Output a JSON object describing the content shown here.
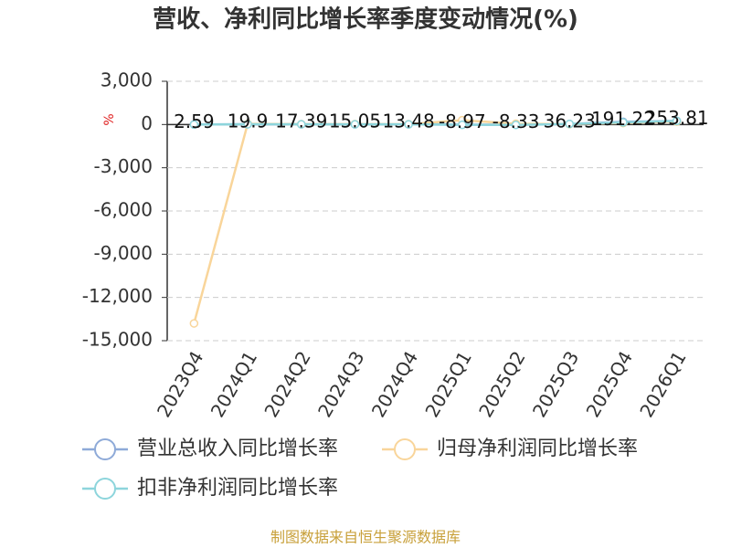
{
  "chart_data": {
    "type": "line",
    "title": "营收、净利同比增长率季度变动情况(%)",
    "y_label": "%",
    "categories": [
      "2023Q4",
      "2024Q1",
      "2024Q2",
      "2024Q3",
      "2024Q4",
      "2025Q1",
      "2025Q2",
      "2025Q3",
      "2025Q4",
      "2026Q1"
    ],
    "series": [
      {
        "name": "营业总收入同比增长率",
        "color": "#8eaad8",
        "values": [
          2.59,
          19.9,
          17.39,
          15.05,
          13.48,
          -8.97,
          -8.33,
          36.23,
          191.22,
          253.81
        ]
      },
      {
        "name": "归母净利润同比增长率",
        "color": "#f9d59a",
        "values": [
          -13800,
          50,
          20,
          30,
          20,
          300,
          50,
          30,
          100,
          200
        ]
      },
      {
        "name": "扣非净利润同比增长率",
        "color": "#8dd5dc",
        "values": [
          0,
          20,
          10,
          10,
          10,
          -20,
          -30,
          40,
          150,
          250
        ]
      }
    ],
    "ylim": [
      -15000,
      3000
    ],
    "yticks": [
      {
        "value": -15000,
        "label": "-15,000"
      },
      {
        "value": -12000,
        "label": "-12,000"
      },
      {
        "value": -9000,
        "label": "-9,000"
      },
      {
        "value": -6000,
        "label": "-6,000"
      },
      {
        "value": -3000,
        "label": "-3,000"
      },
      0,
      {
        "value": 3000,
        "label": "3,000"
      }
    ],
    "grid": true,
    "source": "制图数据来自恒生聚源数据库"
  }
}
